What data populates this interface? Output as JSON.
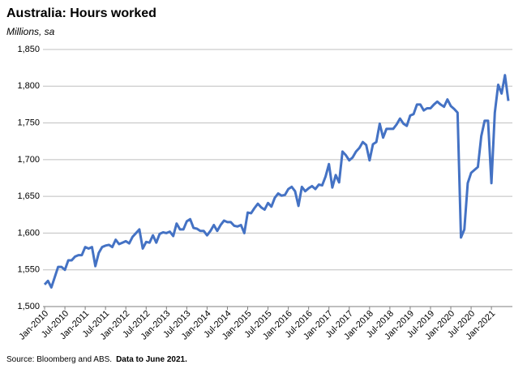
{
  "chart_data": {
    "type": "line",
    "title": "Australia: Hours worked",
    "subtitle": "Millions, sa",
    "source": "Source: Bloomberg and ABS.",
    "note": "Data to June 2021.",
    "categories": [
      "Jan-2010",
      null,
      null,
      null,
      null,
      null,
      "Jul-2010",
      null,
      null,
      null,
      null,
      null,
      "Jan-2011",
      null,
      null,
      null,
      null,
      null,
      "Jul-2011",
      null,
      null,
      null,
      null,
      null,
      "Jan-2012",
      null,
      null,
      null,
      null,
      null,
      "Jul-2012",
      null,
      null,
      null,
      null,
      null,
      "Jan-2013",
      null,
      null,
      null,
      null,
      null,
      "Jul-2013",
      null,
      null,
      null,
      null,
      null,
      "Jan-2014",
      null,
      null,
      null,
      null,
      null,
      "Jul-2014",
      null,
      null,
      null,
      null,
      null,
      "Jan-2015",
      null,
      null,
      null,
      null,
      null,
      "Jul-2015",
      null,
      null,
      null,
      null,
      null,
      "Jan-2016",
      null,
      null,
      null,
      null,
      null,
      "Jul-2016",
      null,
      null,
      null,
      null,
      null,
      "Jan-2017",
      null,
      null,
      null,
      null,
      null,
      "Jul-2017",
      null,
      null,
      null,
      null,
      null,
      "Jan-2018",
      null,
      null,
      null,
      null,
      null,
      "Jul-2018",
      null,
      null,
      null,
      null,
      null,
      "Jan-2019",
      null,
      null,
      null,
      null,
      null,
      "Jul-2019",
      null,
      null,
      null,
      null,
      null,
      "Jan-2020",
      null,
      null,
      null,
      null,
      null,
      "Jul-2020",
      null,
      null,
      null,
      null,
      null,
      "Jan-2021",
      null,
      null,
      null,
      null,
      null
    ],
    "series": [
      {
        "color": "#4472c4",
        "values": [
          1530,
          1535,
          1526,
          1540,
          1554,
          1554,
          1550,
          1563,
          1563,
          1568,
          1570,
          1570,
          1581,
          1579,
          1581,
          1555,
          1573,
          1581,
          1583,
          1584,
          1581,
          1591,
          1585,
          1587,
          1589,
          1586,
          1595,
          1600,
          1605,
          1579,
          1588,
          1587,
          1597,
          1587,
          1599,
          1601,
          1600,
          1602,
          1596,
          1613,
          1605,
          1605,
          1616,
          1619,
          1607,
          1606,
          1603,
          1603,
          1597,
          1603,
          1611,
          1603,
          1611,
          1617,
          1615,
          1615,
          1610,
          1609,
          1611,
          1600,
          1628,
          1627,
          1634,
          1640,
          1635,
          1632,
          1641,
          1636,
          1648,
          1654,
          1651,
          1652,
          1660,
          1663,
          1657,
          1637,
          1663,
          1657,
          1661,
          1664,
          1660,
          1666,
          1665,
          1677,
          1694,
          1662,
          1679,
          1669,
          1711,
          1706,
          1699,
          1703,
          1711,
          1716,
          1724,
          1720,
          1699,
          1721,
          1724,
          1749,
          1730,
          1742,
          1742,
          1742,
          1748,
          1756,
          1749,
          1746,
          1760,
          1762,
          1775,
          1775,
          1767,
          1770,
          1770,
          1775,
          1779,
          1775,
          1772,
          1782,
          1773,
          1769,
          1764,
          1594,
          1605,
          1668,
          1682,
          1686,
          1690,
          1732,
          1753,
          1753,
          1668,
          1764,
          1802,
          1790,
          1815,
          1780
        ]
      }
    ],
    "ylim": [
      1500,
      1850
    ],
    "yticks": [
      {
        "value": 1500,
        "label": "1,500"
      },
      {
        "value": 1550,
        "label": "1,550"
      },
      {
        "value": 1600,
        "label": "1,600"
      },
      {
        "value": 1650,
        "label": "1,650"
      },
      {
        "value": 1700,
        "label": "1,700"
      },
      {
        "value": 1750,
        "label": "1,750"
      },
      {
        "value": 1800,
        "label": "1,800"
      },
      {
        "value": 1850,
        "label": "1,850"
      }
    ],
    "grid": true
  }
}
